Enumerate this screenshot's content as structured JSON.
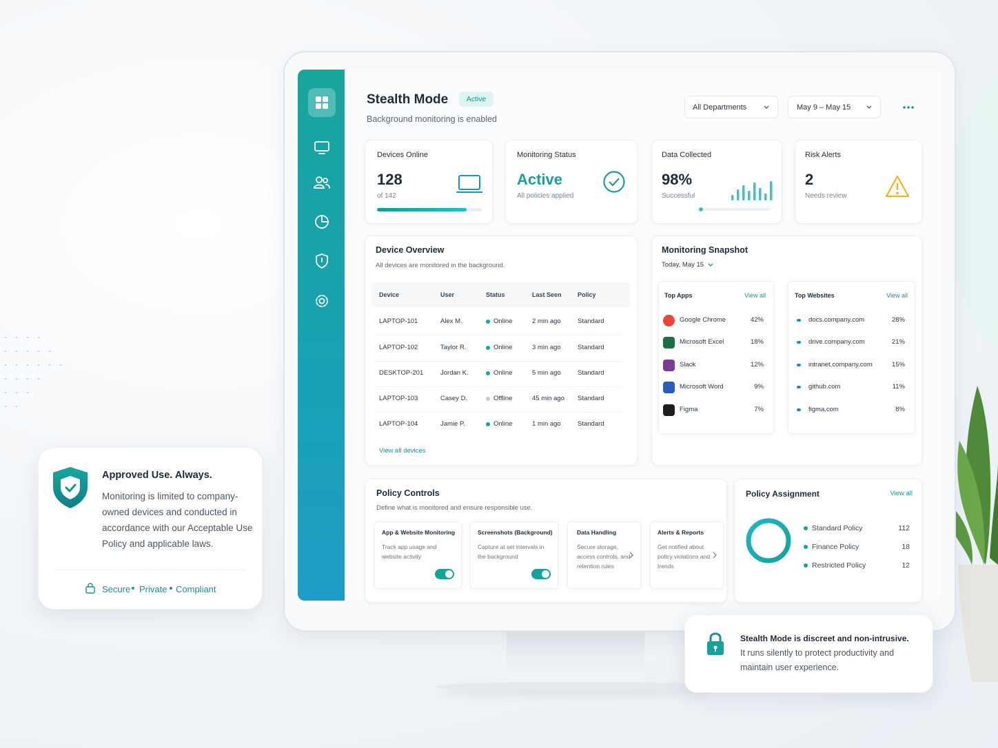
{
  "header": {
    "title": "Stealth Mode",
    "badge": "Active",
    "subtitle": "Background monitoring is enabled",
    "department": "All Departments",
    "date_range": "May 9 – May 15"
  },
  "stats": [
    {
      "label": "Devices Online",
      "value": "128",
      "sub": "of 142"
    },
    {
      "label": "Monitoring Status",
      "value": "Active",
      "sub": "All policies applied"
    },
    {
      "label": "Data Collected",
      "value": "98%",
      "sub": "Successful"
    },
    {
      "label": "Risk Alerts",
      "value": "2",
      "sub": "Needs review"
    }
  ],
  "device_overview": {
    "title": "Device Overview",
    "subtitle": "All devices are monitored in the background.",
    "columns": [
      "Device",
      "User",
      "Status",
      "Last Seen",
      "Policy"
    ],
    "rows": [
      [
        "LAPTOP-101",
        "Alex M.",
        "Online",
        "2 min ago",
        "Standard"
      ],
      [
        "LAPTOP-102",
        "Taylor R.",
        "Online",
        "3 min ago",
        "Standard"
      ],
      [
        "DESKTOP-201",
        "Jordan K.",
        "Online",
        "5 min ago",
        "Standard"
      ],
      [
        "LAPTOP-103",
        "Casey D.",
        "Offline",
        "45 min ago",
        "Standard"
      ],
      [
        "LAPTOP-104",
        "Jamie P.",
        "Online",
        "1 min ago",
        "Standard"
      ]
    ],
    "status_colors": [
      "#14a89a",
      "#14a89a",
      "#14a89a",
      "#c5cbd1",
      "#14a89a"
    ],
    "link": "View all devices"
  },
  "snapshot": {
    "title": "Monitoring Snapshot",
    "date": "Today, May 15",
    "apps": {
      "title": "Top Apps",
      "link": "View all",
      "items": [
        {
          "name": "Google Chrome",
          "share": "42%",
          "icon_color": "#e8453c"
        },
        {
          "name": "Microsoft Excel",
          "share": "18%",
          "icon_color": "#1d7044"
        },
        {
          "name": "Slack",
          "share": "12%",
          "icon_color": "#7b3d91"
        },
        {
          "name": "Microsoft Word",
          "share": "9%",
          "icon_color": "#2b5cb8"
        },
        {
          "name": "Figma",
          "share": "7%",
          "icon_color": "#1e1e1e"
        }
      ]
    },
    "websites": {
      "title": "Top Websites",
      "link": "View all",
      "items": [
        {
          "name": "docs.company.com",
          "share": "28%"
        },
        {
          "name": "drive.company.com",
          "share": "21%"
        },
        {
          "name": "intranet.company.com",
          "share": "15%"
        },
        {
          "name": "github.com",
          "share": "11%"
        },
        {
          "name": "figma.com",
          "share": "8%"
        }
      ]
    }
  },
  "policy_controls": {
    "title": "Policy Controls",
    "subtitle": "Define what is monitored and ensure responsible use.",
    "cards": [
      {
        "title": "App & Website Monitoring",
        "text": "Track app usage and website activity"
      },
      {
        "title": "Screenshots (Background)",
        "text": "Capture at set intervals in the background"
      },
      {
        "title": "Data Handling",
        "text": "Secure storage, access controls, and retention rules"
      },
      {
        "title": "Alerts & Reports",
        "text": "Get notified about policy violations and trends"
      }
    ]
  },
  "policy_assignment": {
    "title": "Policy Assignment",
    "link": "View all",
    "items": [
      {
        "name": "Standard Policy",
        "count": "112"
      },
      {
        "name": "Finance Policy",
        "count": "18"
      },
      {
        "name": "Restricted Policy",
        "count": "12"
      }
    ]
  },
  "approved_card": {
    "title": "Approved Use. Always.",
    "text": "Monitoring is limited to company-owned devices and conducted in accordance with our Acceptable Use Policy and applicable laws.",
    "footer": [
      "Secure",
      "Private",
      "Compliant"
    ]
  },
  "notice_card": {
    "title": "Stealth Mode is discreet and non-intrusive.",
    "text": "It runs silently to protect productivity and maintain user experience."
  }
}
